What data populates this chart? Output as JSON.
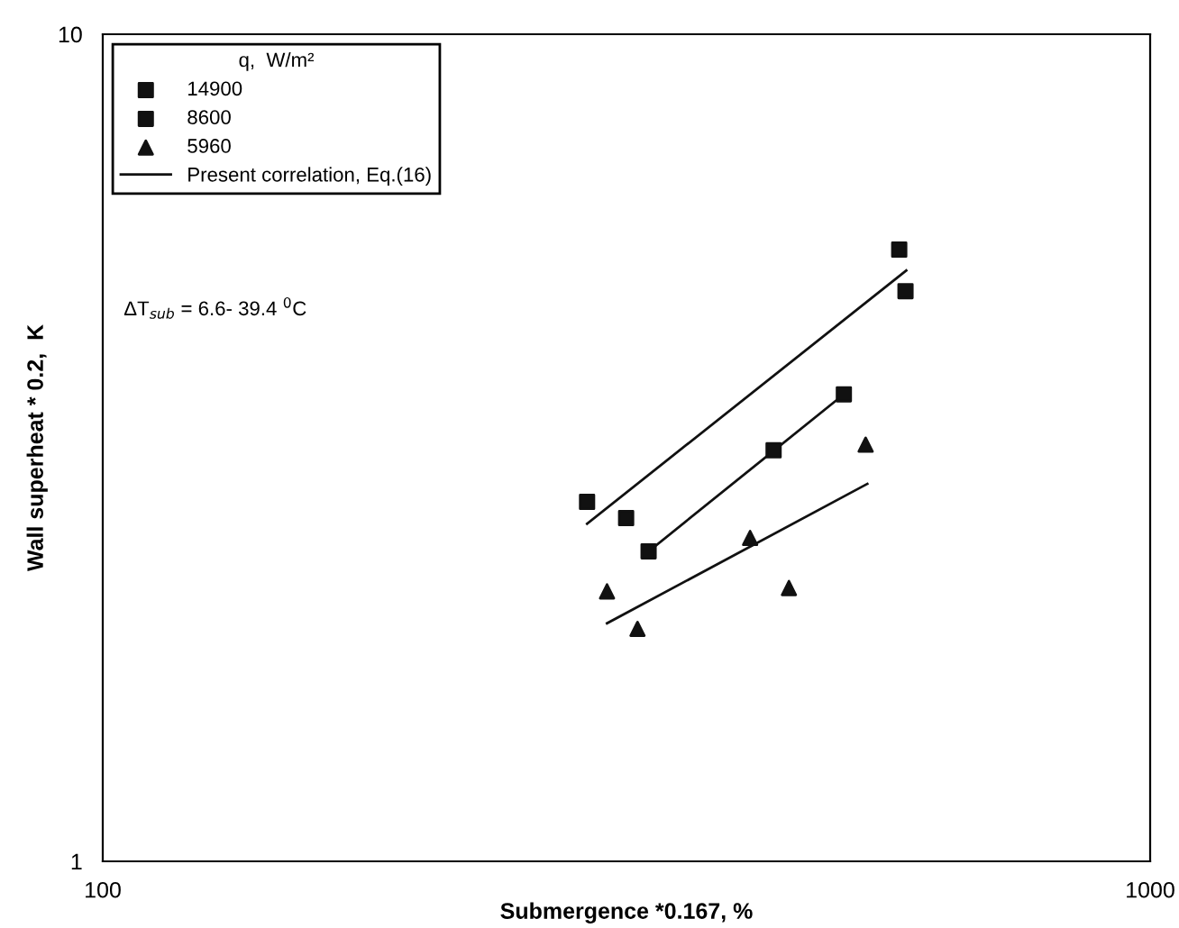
{
  "chart_data": {
    "type": "scatter",
    "xlabel": "Submergence *0.167, %",
    "ylabel": "Wall superheat * 0.2,  K",
    "legend_title": "q,  W/m²",
    "log": "xy",
    "xlim": [
      100,
      1000
    ],
    "ylim": [
      1,
      10
    ],
    "xticks": [
      100,
      1000
    ],
    "yticks": [
      1,
      10
    ],
    "grid": false,
    "legend": "top left",
    "annotations": [
      "ΔT$_{sub}$ = 6.6- 39.4 $^{0}$C"
    ],
    "series": [
      {
        "name": "14900",
        "marker": "square",
        "color": "#111111",
        "x": [
          290,
          316,
          576,
          584
        ],
        "values": [
          2.72,
          2.6,
          5.49,
          4.89
        ]
      },
      {
        "name": "8600",
        "marker": "square",
        "color": "#111111",
        "x": [
          332,
          437,
          510
        ],
        "values": [
          2.37,
          3.14,
          3.67
        ]
      },
      {
        "name": "5960",
        "marker": "triangle",
        "color": "#111111",
        "x": [
          303,
          324,
          415,
          452,
          535
        ],
        "values": [
          2.12,
          1.91,
          2.46,
          2.14,
          3.19
        ]
      },
      {
        "name": "Present correlation, Eq.(16)",
        "type": "line",
        "line_style": "solid",
        "color": "#111111",
        "x": [
          290,
          585
        ],
        "values": [
          2.56,
          5.18
        ]
      },
      {
        "type": "line",
        "line_style": "solid",
        "color": "#111111",
        "x": [
          332,
          510
        ],
        "values": [
          2.37,
          3.67
        ]
      },
      {
        "type": "line",
        "line_style": "solid",
        "color": "#111111",
        "x": [
          303,
          537
        ],
        "values": [
          1.94,
          2.86
        ]
      }
    ]
  }
}
